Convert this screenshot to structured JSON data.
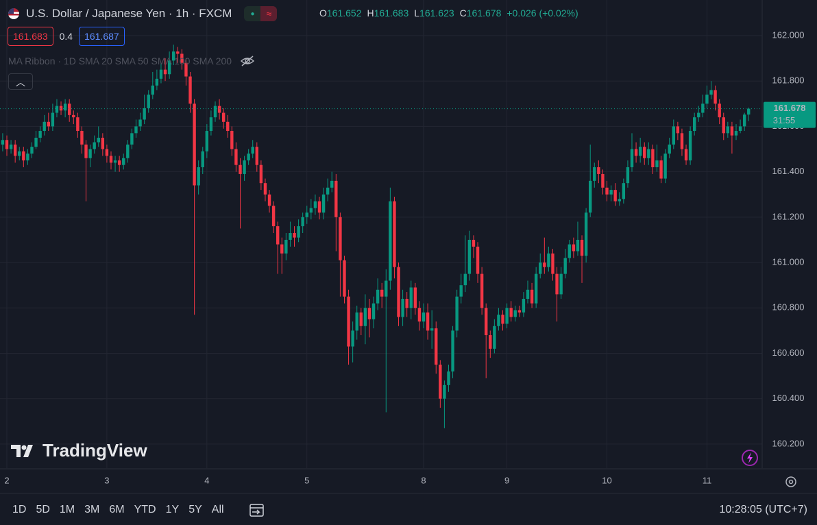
{
  "header": {
    "title": "U.S. Dollar / Japanese Yen · 1h · FXCM",
    "ohlc_labels": [
      "O",
      "H",
      "L",
      "C"
    ],
    "change": "+0.026 (+0.02%)"
  },
  "toolbar": {
    "bid": "161.683",
    "spread": "0.4",
    "ask": "161.687"
  },
  "indicator": "MA Ribbon · 1D SMA 20 SMA 50 SMA 100 SMA 200",
  "watermark": "TradingView",
  "countdown": "31:55",
  "footer": {
    "ranges": [
      "1D",
      "5D",
      "1M",
      "3M",
      "6M",
      "YTD",
      "1Y",
      "5Y",
      "All"
    ],
    "clock": "10:28:05 (UTC+7)"
  },
  "chart_data": {
    "type": "candlestick",
    "categories": [
      null,
      "2",
      null,
      null,
      null,
      null,
      null,
      null,
      null,
      null,
      null,
      null,
      null,
      null,
      null,
      null,
      null,
      null,
      null,
      null,
      null,
      null,
      null,
      null,
      null,
      "3",
      null,
      null,
      null,
      null,
      null,
      null,
      null,
      null,
      null,
      null,
      null,
      null,
      null,
      null,
      null,
      null,
      null,
      null,
      null,
      null,
      null,
      null,
      null,
      "4",
      null,
      null,
      null,
      null,
      null,
      null,
      null,
      null,
      null,
      null,
      null,
      null,
      null,
      null,
      null,
      null,
      null,
      null,
      null,
      null,
      null,
      null,
      null,
      "5",
      null,
      null,
      null,
      null,
      null,
      null,
      null,
      null,
      null,
      null,
      null,
      null,
      null,
      null,
      null,
      null,
      null,
      null,
      null,
      null,
      null,
      null,
      null,
      null,
      null,
      null,
      null,
      "8",
      null,
      null,
      null,
      null,
      null,
      null,
      null,
      null,
      null,
      null,
      null,
      null,
      null,
      null,
      null,
      null,
      null,
      null,
      null,
      "9",
      null,
      null,
      null,
      null,
      null,
      null,
      null,
      null,
      null,
      null,
      null,
      null,
      null,
      null,
      null,
      null,
      null,
      null,
      null,
      null,
      null,
      null,
      null,
      "10",
      null,
      null,
      null,
      null,
      null,
      null,
      null,
      null,
      null,
      null,
      null,
      null,
      null,
      null,
      null,
      null,
      null,
      null,
      null,
      null,
      null,
      null,
      null,
      "11",
      null,
      null,
      null,
      null,
      null,
      null,
      null,
      null,
      null,
      null
    ],
    "open": [
      161.52,
      161.54,
      161.5,
      161.52,
      161.47,
      161.49,
      161.45,
      161.48,
      161.51,
      161.55,
      161.58,
      161.62,
      161.6,
      161.66,
      161.69,
      161.67,
      161.7,
      161.65,
      161.64,
      161.58,
      161.52,
      161.46,
      161.5,
      161.53,
      161.55,
      161.5,
      161.47,
      161.44,
      161.45,
      161.43,
      161.46,
      161.52,
      161.57,
      161.6,
      161.63,
      161.68,
      161.74,
      161.78,
      161.81,
      161.85,
      161.83,
      161.89,
      161.93,
      161.92,
      161.88,
      161.82,
      161.7,
      161.34,
      161.42,
      161.49,
      161.58,
      161.64,
      161.69,
      161.66,
      161.62,
      161.58,
      161.5,
      161.43,
      161.39,
      161.45,
      161.48,
      161.51,
      161.43,
      161.35,
      161.3,
      161.25,
      161.16,
      161.08,
      161.04,
      161.1,
      161.13,
      161.11,
      161.16,
      161.2,
      161.22,
      161.24,
      161.27,
      161.22,
      161.3,
      161.33,
      161.36,
      161.2,
      161.01,
      160.85,
      160.63,
      160.7,
      160.78,
      160.72,
      160.8,
      160.75,
      160.82,
      160.88,
      160.85,
      160.92,
      161.27,
      160.98,
      160.76,
      160.84,
      160.8,
      160.89,
      160.8,
      160.74,
      160.78,
      160.7,
      160.71,
      160.55,
      160.4,
      160.46,
      160.52,
      160.7,
      160.85,
      160.9,
      160.95,
      161.1,
      161.07,
      160.95,
      160.8,
      160.68,
      160.62,
      160.72,
      160.77,
      160.73,
      160.8,
      160.76,
      160.79,
      160.78,
      160.84,
      160.88,
      160.82,
      160.95,
      161.0,
      160.98,
      161.04,
      160.95,
      160.86,
      160.95,
      161.02,
      161.08,
      161.05,
      161.1,
      161.03,
      161.22,
      161.36,
      161.42,
      161.39,
      161.33,
      161.3,
      161.32,
      161.27,
      161.28,
      161.35,
      161.42,
      161.5,
      161.47,
      161.51,
      161.46,
      161.5,
      161.42,
      161.45,
      161.37,
      161.48,
      161.52,
      161.6,
      161.57,
      161.5,
      161.45,
      161.58,
      161.64,
      161.66,
      161.7,
      161.74,
      161.76,
      161.7,
      161.64,
      161.57,
      161.6,
      161.56,
      161.58,
      161.6,
      161.652
    ],
    "high": [
      161.57,
      161.56,
      161.54,
      161.54,
      161.51,
      161.51,
      161.5,
      161.53,
      161.58,
      161.6,
      161.65,
      161.66,
      161.7,
      161.72,
      161.71,
      161.72,
      161.72,
      161.67,
      161.66,
      161.6,
      161.54,
      161.52,
      161.56,
      161.6,
      161.57,
      161.52,
      161.49,
      161.47,
      161.47,
      161.48,
      161.54,
      161.59,
      161.63,
      161.66,
      161.74,
      161.76,
      161.84,
      161.85,
      161.88,
      161.9,
      161.93,
      161.96,
      161.95,
      161.94,
      161.9,
      161.84,
      161.72,
      161.45,
      161.51,
      161.61,
      161.67,
      161.71,
      161.72,
      161.68,
      161.65,
      161.6,
      161.53,
      161.46,
      161.47,
      161.5,
      161.54,
      161.53,
      161.45,
      161.37,
      161.32,
      161.27,
      161.18,
      161.11,
      161.13,
      161.18,
      161.16,
      161.19,
      161.22,
      161.25,
      161.28,
      161.3,
      161.29,
      161.33,
      161.37,
      161.4,
      161.39,
      161.22,
      161.03,
      160.88,
      160.74,
      160.81,
      160.8,
      160.86,
      160.84,
      160.85,
      160.93,
      160.91,
      160.97,
      161.33,
      161.29,
      161.0,
      160.88,
      160.87,
      160.92,
      160.91,
      160.83,
      160.82,
      160.82,
      160.79,
      160.74,
      160.57,
      160.48,
      160.55,
      160.72,
      160.88,
      160.95,
      161.12,
      161.14,
      161.12,
      161.09,
      160.98,
      160.82,
      160.7,
      160.75,
      160.8,
      160.79,
      160.82,
      160.83,
      160.81,
      160.81,
      160.87,
      160.92,
      160.91,
      160.98,
      161.04,
      161.11,
      161.07,
      161.06,
      160.98,
      160.98,
      161.06,
      161.1,
      161.11,
      161.18,
      161.12,
      161.24,
      161.52,
      161.44,
      161.45,
      161.41,
      161.36,
      161.34,
      161.35,
      161.31,
      161.37,
      161.45,
      161.57,
      161.53,
      161.55,
      161.53,
      161.53,
      161.52,
      161.52,
      161.47,
      161.5,
      161.55,
      161.63,
      161.62,
      161.59,
      161.52,
      161.6,
      161.66,
      161.69,
      161.74,
      161.78,
      161.8,
      161.78,
      161.72,
      161.66,
      161.62,
      161.62,
      161.61,
      161.63,
      161.66,
      161.683
    ],
    "low": [
      161.49,
      161.47,
      161.48,
      161.44,
      161.45,
      161.42,
      161.43,
      161.46,
      161.5,
      161.53,
      161.56,
      161.58,
      161.58,
      161.64,
      161.65,
      161.64,
      161.62,
      161.61,
      161.55,
      161.48,
      161.27,
      161.42,
      161.48,
      161.51,
      161.47,
      161.44,
      161.41,
      161.4,
      161.4,
      161.41,
      161.44,
      161.5,
      161.55,
      161.58,
      161.61,
      161.66,
      161.72,
      161.76,
      161.79,
      161.8,
      161.81,
      161.87,
      161.88,
      161.85,
      161.78,
      161.66,
      160.77,
      161.3,
      161.39,
      161.46,
      161.56,
      161.62,
      161.63,
      161.59,
      161.55,
      161.47,
      161.4,
      161.15,
      161.36,
      161.43,
      161.46,
      161.4,
      161.32,
      161.27,
      161.22,
      161.13,
      160.95,
      160.95,
      161.01,
      161.07,
      161.07,
      161.09,
      161.13,
      161.17,
      161.19,
      161.21,
      161.19,
      161.19,
      161.27,
      161.31,
      161.05,
      160.85,
      160.82,
      160.55,
      160.56,
      160.66,
      160.68,
      160.64,
      160.67,
      160.71,
      160.79,
      160.8,
      160.34,
      160.88,
      160.93,
      160.72,
      160.72,
      160.76,
      160.75,
      160.77,
      160.7,
      160.71,
      160.66,
      160.62,
      160.51,
      160.36,
      160.27,
      160.43,
      160.49,
      160.67,
      160.82,
      160.87,
      160.92,
      161.02,
      160.91,
      160.77,
      160.49,
      160.58,
      160.6,
      160.7,
      160.7,
      160.71,
      160.74,
      160.74,
      160.76,
      160.76,
      160.82,
      160.8,
      160.8,
      160.93,
      160.95,
      160.96,
      160.92,
      160.74,
      160.84,
      160.93,
      161.0,
      161.02,
      161.03,
      160.91,
      161.0,
      161.2,
      161.33,
      161.35,
      161.3,
      161.27,
      161.27,
      161.25,
      161.25,
      161.26,
      161.33,
      161.4,
      161.44,
      161.44,
      161.43,
      161.43,
      161.39,
      161.4,
      161.35,
      161.35,
      161.46,
      161.5,
      161.54,
      161.47,
      161.43,
      161.43,
      161.56,
      161.62,
      161.64,
      161.68,
      161.72,
      161.67,
      161.61,
      161.54,
      161.55,
      161.48,
      161.54,
      161.57,
      161.58,
      161.623
    ],
    "close": [
      161.54,
      161.5,
      161.52,
      161.47,
      161.49,
      161.45,
      161.48,
      161.51,
      161.55,
      161.58,
      161.62,
      161.6,
      161.66,
      161.69,
      161.67,
      161.7,
      161.65,
      161.64,
      161.58,
      161.52,
      161.46,
      161.5,
      161.53,
      161.55,
      161.5,
      161.47,
      161.44,
      161.45,
      161.43,
      161.46,
      161.52,
      161.57,
      161.6,
      161.63,
      161.68,
      161.74,
      161.78,
      161.81,
      161.85,
      161.83,
      161.89,
      161.93,
      161.92,
      161.88,
      161.82,
      161.7,
      161.34,
      161.42,
      161.49,
      161.58,
      161.64,
      161.69,
      161.66,
      161.62,
      161.58,
      161.5,
      161.43,
      161.39,
      161.45,
      161.48,
      161.51,
      161.43,
      161.35,
      161.3,
      161.25,
      161.16,
      161.08,
      161.04,
      161.1,
      161.13,
      161.11,
      161.16,
      161.2,
      161.22,
      161.24,
      161.27,
      161.22,
      161.3,
      161.33,
      161.36,
      161.2,
      161.01,
      160.85,
      160.63,
      160.7,
      160.78,
      160.72,
      160.8,
      160.75,
      160.82,
      160.88,
      160.85,
      160.92,
      161.27,
      160.98,
      160.76,
      160.84,
      160.8,
      160.89,
      160.8,
      160.74,
      160.78,
      160.7,
      160.71,
      160.55,
      160.4,
      160.46,
      160.52,
      160.7,
      160.85,
      160.9,
      160.95,
      161.1,
      161.07,
      160.95,
      160.8,
      160.68,
      160.62,
      160.72,
      160.77,
      160.73,
      160.8,
      160.76,
      160.79,
      160.78,
      160.84,
      160.88,
      160.82,
      160.95,
      161.0,
      160.98,
      161.04,
      160.95,
      160.86,
      160.95,
      161.02,
      161.08,
      161.05,
      161.1,
      161.03,
      161.22,
      161.36,
      161.42,
      161.39,
      161.33,
      161.3,
      161.32,
      161.27,
      161.28,
      161.35,
      161.42,
      161.5,
      161.47,
      161.51,
      161.46,
      161.5,
      161.42,
      161.45,
      161.37,
      161.48,
      161.52,
      161.6,
      161.57,
      161.5,
      161.45,
      161.58,
      161.64,
      161.66,
      161.7,
      161.74,
      161.76,
      161.7,
      161.64,
      161.57,
      161.6,
      161.56,
      161.58,
      161.6,
      161.652,
      161.678
    ],
    "up_color": "#089981",
    "down_color": "#f23645",
    "ylim": [
      160.094,
      162.157
    ],
    "yticks": [
      {
        "value": 160.2,
        "label": "160.200"
      },
      {
        "value": 160.4,
        "label": "160.400"
      },
      {
        "value": 160.6,
        "label": "160.600"
      },
      {
        "value": 160.8,
        "label": "160.800"
      },
      {
        "value": 161.0,
        "label": "161.000"
      },
      {
        "value": 161.2,
        "label": "161.200"
      },
      {
        "value": 161.4,
        "label": "161.400"
      },
      {
        "value": 161.6,
        "label": "161.600"
      },
      {
        "value": 161.8,
        "label": "161.800"
      },
      {
        "value": 162.0,
        "label": "162.000"
      }
    ],
    "grid": true
  }
}
